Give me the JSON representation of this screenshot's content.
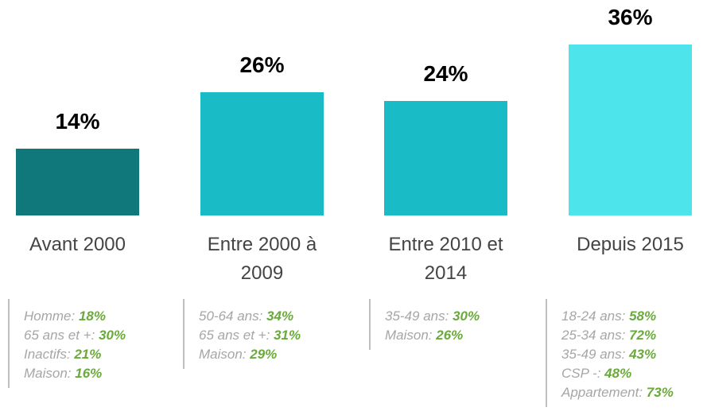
{
  "chart_data": {
    "type": "bar",
    "categories": [
      "Avant 2000",
      "Entre 2000 à 2009",
      "Entre 2010 et 2014",
      "Depuis 2015"
    ],
    "values": [
      14,
      26,
      24,
      36
    ],
    "value_labels": [
      "14%",
      "26%",
      "24%",
      "36%"
    ],
    "colors": [
      "#10777a",
      "#19bcc6",
      "#19bcc6",
      "#4de4ec"
    ],
    "annotations": [
      [
        {
          "label": "Homme:",
          "value": "18%"
        },
        {
          "label": "65 ans et +:",
          "value": "30%"
        },
        {
          "label": "Inactifs:",
          "value": "21%"
        },
        {
          "label": "Maison:",
          "value": "16%"
        }
      ],
      [
        {
          "label": "50-64 ans:",
          "value": "34%"
        },
        {
          "label": "65 ans et +:",
          "value": "31%"
        },
        {
          "label": "Maison:",
          "value": "29%"
        }
      ],
      [
        {
          "label": "35-49 ans:",
          "value": "30%"
        },
        {
          "label": "Maison:",
          "value": "26%"
        }
      ],
      [
        {
          "label": "18-24 ans:",
          "value": "58%"
        },
        {
          "label": "25-34 ans:",
          "value": "72%"
        },
        {
          "label": "35-49 ans:",
          "value": "43%"
        },
        {
          "label": "CSP -:",
          "value": "48%"
        },
        {
          "label": "Appartement:",
          "value": "73%"
        }
      ]
    ]
  }
}
